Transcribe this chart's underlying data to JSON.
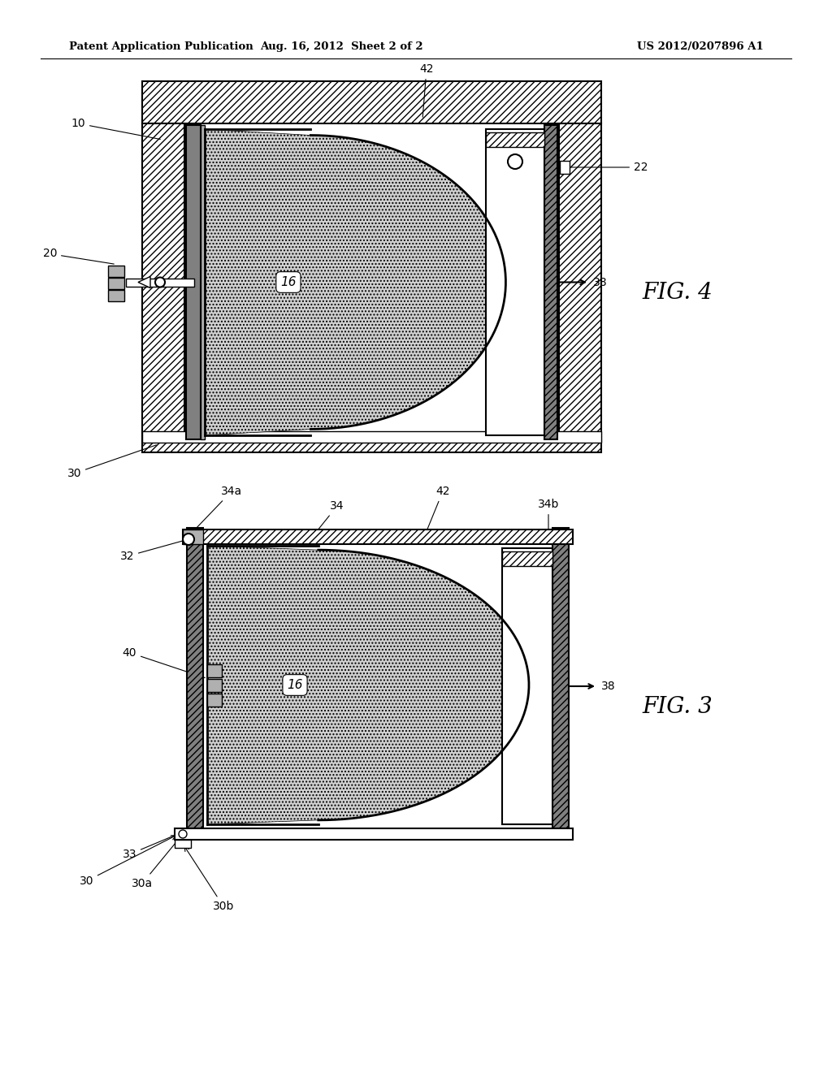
{
  "bg_color": "#ffffff",
  "header_left": "Patent Application Publication",
  "header_center": "Aug. 16, 2012  Sheet 2 of 2",
  "header_right": "US 2012/0207896 A1",
  "fig4_label": "FIG. 4",
  "fig3_label": "FIG. 3",
  "line_color": "#000000",
  "hatch_diag": "////",
  "hatch_dot": "....",
  "gray_dark": "#808080",
  "gray_mid": "#b0b0b0",
  "gray_light": "#d0d0d0",
  "white": "#ffffff"
}
